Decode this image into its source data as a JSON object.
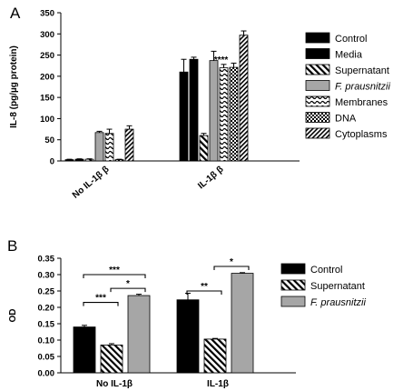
{
  "colors": {
    "control": "#000000",
    "media": "#000000",
    "fp": "#a6a6a6",
    "axis": "#000000"
  },
  "panels": {
    "a": "A",
    "b": "B"
  },
  "chart_data": [
    {
      "type": "bar",
      "ylabel": "IL-8 (pg/µg protein)",
      "ylim": [
        0,
        350
      ],
      "yticks": [
        0,
        50,
        100,
        150,
        200,
        250,
        300,
        350
      ],
      "categories": [
        "No IL-1β β",
        "IL-1β β"
      ],
      "series": [
        {
          "name": "Control",
          "pattern": "solid-black",
          "values": [
            3,
            210
          ],
          "errors": [
            1,
            30
          ]
        },
        {
          "name": "Media",
          "pattern": "solid-black",
          "values": [
            4,
            240
          ],
          "errors": [
            1,
            5
          ]
        },
        {
          "name": "Supernatant",
          "pattern": "diagonal-stripes",
          "values": [
            4,
            60
          ],
          "errors": [
            1,
            5
          ]
        },
        {
          "name": "F. prausnitzii",
          "pattern": "solid-gray",
          "values": [
            67,
            237
          ],
          "errors": [
            3,
            22
          ]
        },
        {
          "name": "Membranes",
          "pattern": "wavy",
          "values": [
            65,
            220
          ],
          "errors": [
            10,
            8
          ]
        },
        {
          "name": "DNA",
          "pattern": "checker",
          "values": [
            3,
            221
          ],
          "errors": [
            1,
            10
          ]
        },
        {
          "name": "Cytoplasms",
          "pattern": "dense-diagonal",
          "values": [
            75,
            297
          ],
          "errors": [
            8,
            10
          ]
        }
      ],
      "annotations": [
        {
          "text": "****",
          "category": "IL-1β β",
          "above_series": "Supernatant"
        }
      ],
      "legend": "right"
    },
    {
      "type": "bar",
      "ylabel": "OD",
      "ylim": [
        0,
        0.35
      ],
      "yticks": [
        "0.00",
        "0.05",
        "0.10",
        "0.15",
        "0.20",
        "0.25",
        "0.30",
        "0.35"
      ],
      "categories": [
        "No IL-1β",
        "IL-1β"
      ],
      "series": [
        {
          "name": "Control",
          "pattern": "solid-black",
          "values": [
            0.14,
            0.223
          ],
          "errors": [
            0.005,
            0.02
          ]
        },
        {
          "name": "Supernatant",
          "pattern": "diagonal-stripes",
          "values": [
            0.085,
            0.103
          ],
          "errors": [
            0.004,
            0.002
          ]
        },
        {
          "name": "F. prausnitzii",
          "pattern": "solid-gray",
          "values": [
            0.236,
            0.304
          ],
          "errors": [
            0.004,
            0.002
          ]
        }
      ],
      "brackets": [
        {
          "category": "No IL-1β",
          "from": "Control",
          "to": "F. prausnitzii",
          "label": "***",
          "y": 0.3
        },
        {
          "category": "No IL-1β",
          "from": "Control",
          "to": "Supernatant",
          "label": "***",
          "y": 0.215
        },
        {
          "category": "No IL-1β",
          "from": "Supernatant",
          "to": "F. prausnitzii",
          "label": "*",
          "y": 0.258
        },
        {
          "category": "IL-1β",
          "from": "Control",
          "to": "Supernatant",
          "label": "**",
          "y": 0.25
        },
        {
          "category": "IL-1β",
          "from": "Supernatant",
          "to": "F. prausnitzii",
          "label": "*",
          "y": 0.325
        }
      ],
      "legend": "right"
    }
  ]
}
